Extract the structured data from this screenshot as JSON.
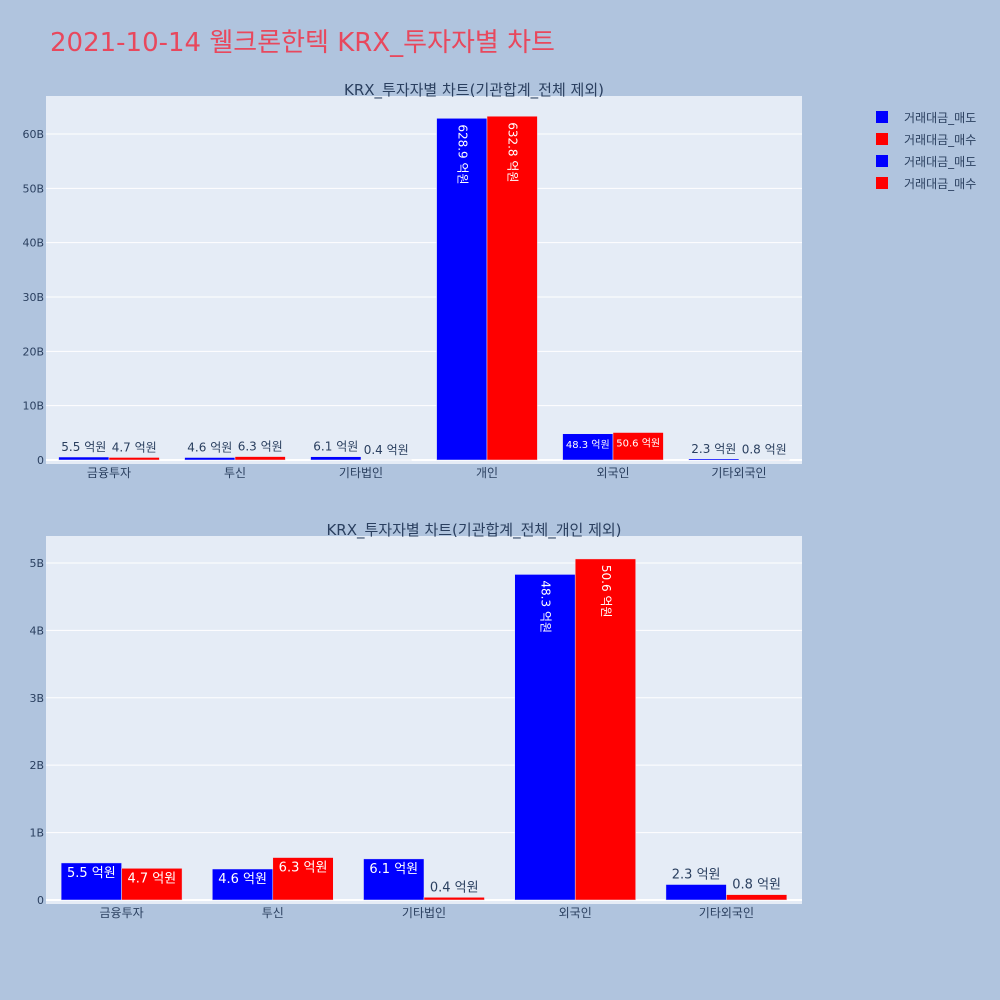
{
  "page": {
    "title": "2021-10-14 웰크론한텍 KRX_투자자별 차트"
  },
  "legend": {
    "items": [
      {
        "label": "거래대금_매도",
        "color": "#0000ff"
      },
      {
        "label": "거래대금_매수",
        "color": "#ff0000"
      },
      {
        "label": "거래대금_매도",
        "color": "#0000ff"
      },
      {
        "label": "거래대금_매수",
        "color": "#ff0000"
      }
    ]
  },
  "chart_data": [
    {
      "type": "bar",
      "title": "KRX_투자자별 차트(기관합계_전체 제외)",
      "categories": [
        "금융투자",
        "투신",
        "기타법인",
        "개인",
        "외국인",
        "기타외국인"
      ],
      "ylim": [
        0,
        67000000000
      ],
      "yticks": [
        0,
        10000000000,
        20000000000,
        30000000000,
        40000000000,
        50000000000,
        60000000000
      ],
      "ytick_labels": [
        "0",
        "10B",
        "20B",
        "30B",
        "40B",
        "50B",
        "60B"
      ],
      "grid": true,
      "series": [
        {
          "name": "거래대금_매도",
          "color": "#0000ff",
          "values": [
            550000000,
            460000000,
            610000000,
            62890000000,
            4830000000,
            230000000
          ],
          "labels": [
            "5.5 억원",
            "4.6 억원",
            "6.1 억원",
            "628.9 억원",
            "48.3 억원",
            "2.3 억원"
          ]
        },
        {
          "name": "거래대금_매수",
          "color": "#ff0000",
          "values": [
            470000000,
            630000000,
            40000000,
            63280000000,
            5060000000,
            80000000
          ],
          "labels": [
            "4.7 억원",
            "6.3 억원",
            "0.4 억원",
            "632.8 억원",
            "50.6 억원",
            "0.8 억원"
          ]
        }
      ]
    },
    {
      "type": "bar",
      "title": "KRX_투자자별 차트(기관합계_전체_개인 제외)",
      "categories": [
        "금융투자",
        "투신",
        "기타법인",
        "외국인",
        "기타외국인"
      ],
      "ylim": [
        0,
        5400000000
      ],
      "yticks": [
        0,
        1000000000,
        2000000000,
        3000000000,
        4000000000,
        5000000000
      ],
      "ytick_labels": [
        "0",
        "1B",
        "2B",
        "3B",
        "4B",
        "5B"
      ],
      "grid": true,
      "series": [
        {
          "name": "거래대금_매도",
          "color": "#0000ff",
          "values": [
            550000000,
            460000000,
            610000000,
            4830000000,
            230000000
          ],
          "labels": [
            "5.5 억원",
            "4.6 억원",
            "6.1 억원",
            "48.3 억원",
            "2.3 억원"
          ]
        },
        {
          "name": "거래대금_매수",
          "color": "#ff0000",
          "values": [
            470000000,
            630000000,
            40000000,
            5060000000,
            80000000
          ],
          "labels": [
            "4.7 억원",
            "6.3 억원",
            "0.4 억원",
            "50.6 억원",
            "0.8 억원"
          ]
        }
      ]
    }
  ]
}
